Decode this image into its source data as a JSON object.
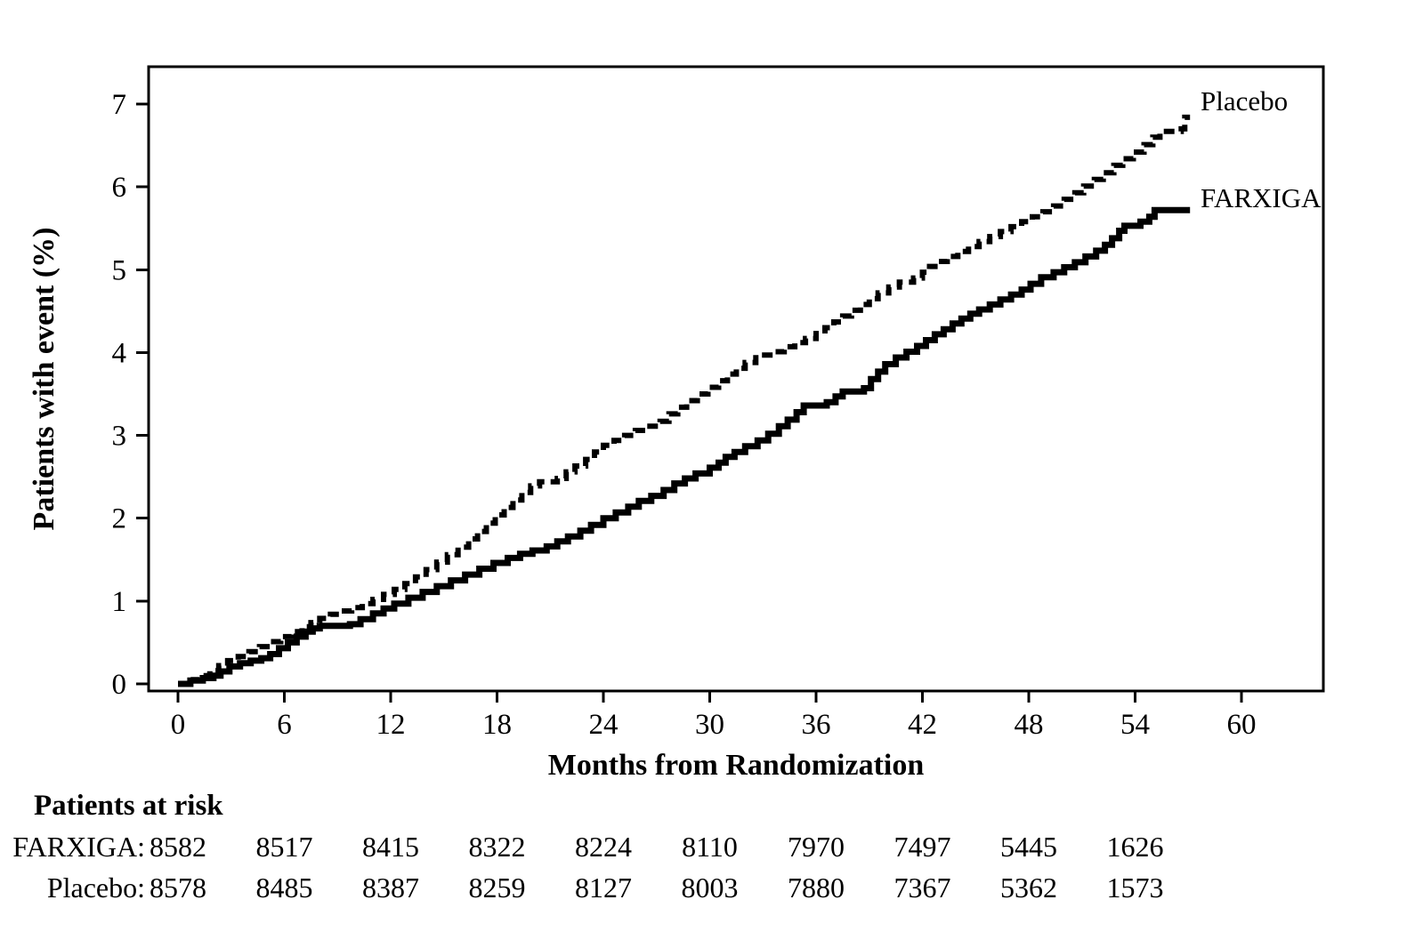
{
  "chart_data": {
    "type": "line",
    "subtype": "kaplan-meier-cumulative-incidence",
    "title": "",
    "xlabel": "Months from Randomization",
    "ylabel": "Patients with event (%)",
    "x_ticks": [
      0,
      6,
      12,
      18,
      24,
      30,
      36,
      42,
      48,
      54,
      60
    ],
    "y_ticks": [
      0,
      1,
      2,
      3,
      4,
      5,
      6,
      7
    ],
    "xlim": [
      -1.7,
      64.6
    ],
    "ylim": [
      0,
      7.45
    ],
    "grid": false,
    "legend_position": "labels-at-line-ends",
    "line_color": "#000000",
    "series": [
      {
        "name": "Placebo",
        "style": "dashed",
        "label_anchor": {
          "month": 57.8,
          "percent": 6.95
        },
        "points": [
          [
            0,
            0
          ],
          [
            0.6,
            0.05
          ],
          [
            1.2,
            0.1
          ],
          [
            1.8,
            0.16
          ],
          [
            2.3,
            0.22
          ],
          [
            2.8,
            0.28
          ],
          [
            3.4,
            0.33
          ],
          [
            4,
            0.39
          ],
          [
            4.6,
            0.45
          ],
          [
            5.2,
            0.51
          ],
          [
            5.8,
            0.57
          ],
          [
            6.4,
            0.63
          ],
          [
            7,
            0.69
          ],
          [
            7.5,
            0.74
          ],
          [
            8,
            0.79
          ],
          [
            8.6,
            0.84
          ],
          [
            9.2,
            0.88
          ],
          [
            9.8,
            0.92
          ],
          [
            10.4,
            0.97
          ],
          [
            11,
            1.02
          ],
          [
            11.6,
            1.08
          ],
          [
            12.2,
            1.14
          ],
          [
            12.8,
            1.21
          ],
          [
            13.4,
            1.29
          ],
          [
            14,
            1.38
          ],
          [
            14.6,
            1.47
          ],
          [
            15.2,
            1.56
          ],
          [
            15.8,
            1.65
          ],
          [
            16.4,
            1.75
          ],
          [
            16.9,
            1.84
          ],
          [
            17.4,
            1.94
          ],
          [
            17.9,
            2.04
          ],
          [
            18.4,
            2.13
          ],
          [
            18.9,
            2.22
          ],
          [
            19.4,
            2.31
          ],
          [
            19.9,
            2.39
          ],
          [
            20.4,
            2.44
          ],
          [
            21.4,
            2.48
          ],
          [
            21.9,
            2.56
          ],
          [
            22.4,
            2.63
          ],
          [
            23,
            2.71
          ],
          [
            23.5,
            2.8
          ],
          [
            24,
            2.88
          ],
          [
            24.6,
            2.94
          ],
          [
            25.2,
            3.0
          ],
          [
            25.8,
            3.06
          ],
          [
            26.4,
            3.11
          ],
          [
            27.2,
            3.17
          ],
          [
            27.7,
            3.26
          ],
          [
            28.2,
            3.34
          ],
          [
            28.7,
            3.42
          ],
          [
            29.3,
            3.5
          ],
          [
            29.9,
            3.58
          ],
          [
            30.5,
            3.66
          ],
          [
            31,
            3.74
          ],
          [
            31.5,
            3.81
          ],
          [
            32,
            3.88
          ],
          [
            32.6,
            3.97
          ],
          [
            33.6,
            4.01
          ],
          [
            34.2,
            4.07
          ],
          [
            34.8,
            4.12
          ],
          [
            35.4,
            4.17
          ],
          [
            36,
            4.23
          ],
          [
            36.5,
            4.3
          ],
          [
            37,
            4.37
          ],
          [
            37.5,
            4.44
          ],
          [
            38,
            4.51
          ],
          [
            38.5,
            4.58
          ],
          [
            39,
            4.65
          ],
          [
            39.5,
            4.72
          ],
          [
            40.1,
            4.79
          ],
          [
            40.7,
            4.85
          ],
          [
            41.5,
            4.9
          ],
          [
            42,
            4.97
          ],
          [
            42.4,
            5.04
          ],
          [
            42.9,
            5.1
          ],
          [
            43.4,
            5.16
          ],
          [
            44,
            5.22
          ],
          [
            44.6,
            5.28
          ],
          [
            45.2,
            5.34
          ],
          [
            45.8,
            5.4
          ],
          [
            46.4,
            5.46
          ],
          [
            47,
            5.52
          ],
          [
            47.6,
            5.58
          ],
          [
            48.2,
            5.64
          ],
          [
            48.8,
            5.7
          ],
          [
            49.4,
            5.77
          ],
          [
            50,
            5.85
          ],
          [
            50.6,
            5.93
          ],
          [
            51.1,
            6.01
          ],
          [
            51.7,
            6.09
          ],
          [
            52.2,
            6.17
          ],
          [
            52.8,
            6.26
          ],
          [
            53.3,
            6.34
          ],
          [
            53.9,
            6.42
          ],
          [
            54.5,
            6.51
          ],
          [
            55,
            6.6
          ],
          [
            55.4,
            6.67
          ],
          [
            56.6,
            6.7
          ],
          [
            56.8,
            6.84
          ],
          [
            57.1,
            6.84
          ]
        ]
      },
      {
        "name": "FARXIGA",
        "style": "solid",
        "label_anchor": {
          "month": 57.8,
          "percent": 5.78
        },
        "points": [
          [
            0,
            0
          ],
          [
            0.7,
            0.04
          ],
          [
            1.4,
            0.07
          ],
          [
            2,
            0.1
          ],
          [
            2.4,
            0.15
          ],
          [
            2.9,
            0.21
          ],
          [
            3.5,
            0.25
          ],
          [
            4.1,
            0.28
          ],
          [
            4.7,
            0.31
          ],
          [
            5.2,
            0.36
          ],
          [
            5.7,
            0.43
          ],
          [
            6.2,
            0.5
          ],
          [
            6.7,
            0.57
          ],
          [
            7.2,
            0.63
          ],
          [
            7.6,
            0.67
          ],
          [
            8,
            0.7
          ],
          [
            9.7,
            0.72
          ],
          [
            10.3,
            0.78
          ],
          [
            11,
            0.85
          ],
          [
            11.6,
            0.91
          ],
          [
            12.2,
            0.97
          ],
          [
            13,
            1.04
          ],
          [
            13.8,
            1.11
          ],
          [
            14.6,
            1.18
          ],
          [
            15.4,
            1.25
          ],
          [
            16.2,
            1.32
          ],
          [
            17,
            1.39
          ],
          [
            17.8,
            1.46
          ],
          [
            18.6,
            1.52
          ],
          [
            19.3,
            1.57
          ],
          [
            20,
            1.61
          ],
          [
            20.8,
            1.66
          ],
          [
            21.4,
            1.72
          ],
          [
            22,
            1.78
          ],
          [
            22.7,
            1.85
          ],
          [
            23.3,
            1.92
          ],
          [
            24,
            2.0
          ],
          [
            24.7,
            2.07
          ],
          [
            25.4,
            2.14
          ],
          [
            26,
            2.21
          ],
          [
            26.7,
            2.27
          ],
          [
            27.4,
            2.34
          ],
          [
            28,
            2.42
          ],
          [
            28.6,
            2.48
          ],
          [
            29.2,
            2.54
          ],
          [
            30,
            2.61
          ],
          [
            30.5,
            2.67
          ],
          [
            30.9,
            2.74
          ],
          [
            31.4,
            2.8
          ],
          [
            32,
            2.87
          ],
          [
            32.7,
            2.94
          ],
          [
            33.3,
            3.02
          ],
          [
            33.9,
            3.11
          ],
          [
            34.4,
            3.19
          ],
          [
            34.9,
            3.28
          ],
          [
            35.3,
            3.36
          ],
          [
            36.6,
            3.4
          ],
          [
            37.1,
            3.47
          ],
          [
            37.5,
            3.53
          ],
          [
            38.7,
            3.57
          ],
          [
            39.1,
            3.68
          ],
          [
            39.5,
            3.77
          ],
          [
            39.9,
            3.86
          ],
          [
            40.5,
            3.94
          ],
          [
            41.1,
            4.01
          ],
          [
            41.7,
            4.08
          ],
          [
            42.2,
            4.15
          ],
          [
            42.7,
            4.22
          ],
          [
            43.2,
            4.28
          ],
          [
            43.7,
            4.35
          ],
          [
            44.2,
            4.41
          ],
          [
            44.7,
            4.47
          ],
          [
            45.2,
            4.52
          ],
          [
            45.8,
            4.58
          ],
          [
            46.4,
            4.64
          ],
          [
            47,
            4.7
          ],
          [
            47.6,
            4.76
          ],
          [
            48.1,
            4.83
          ],
          [
            48.7,
            4.91
          ],
          [
            49.4,
            4.97
          ],
          [
            50,
            5.03
          ],
          [
            50.6,
            5.09
          ],
          [
            51.2,
            5.16
          ],
          [
            51.8,
            5.23
          ],
          [
            52.3,
            5.3
          ],
          [
            52.7,
            5.38
          ],
          [
            53.1,
            5.47
          ],
          [
            53.4,
            5.53
          ],
          [
            54.3,
            5.58
          ],
          [
            54.8,
            5.64
          ],
          [
            55.1,
            5.72
          ],
          [
            57.1,
            5.72
          ]
        ]
      }
    ]
  },
  "risk_table": {
    "heading": "Patients at risk",
    "months": [
      0,
      6,
      12,
      18,
      24,
      30,
      36,
      42,
      48,
      54
    ],
    "rows": [
      {
        "label": "FARXIGA:",
        "counts": [
          8582,
          8517,
          8415,
          8322,
          8224,
          8110,
          7970,
          7497,
          5445,
          1626
        ]
      },
      {
        "label": "Placebo:",
        "counts": [
          8578,
          8485,
          8387,
          8259,
          8127,
          8003,
          7880,
          7367,
          5362,
          1573
        ]
      }
    ]
  },
  "colors": {
    "foreground": "#000000",
    "background": "#ffffff"
  }
}
